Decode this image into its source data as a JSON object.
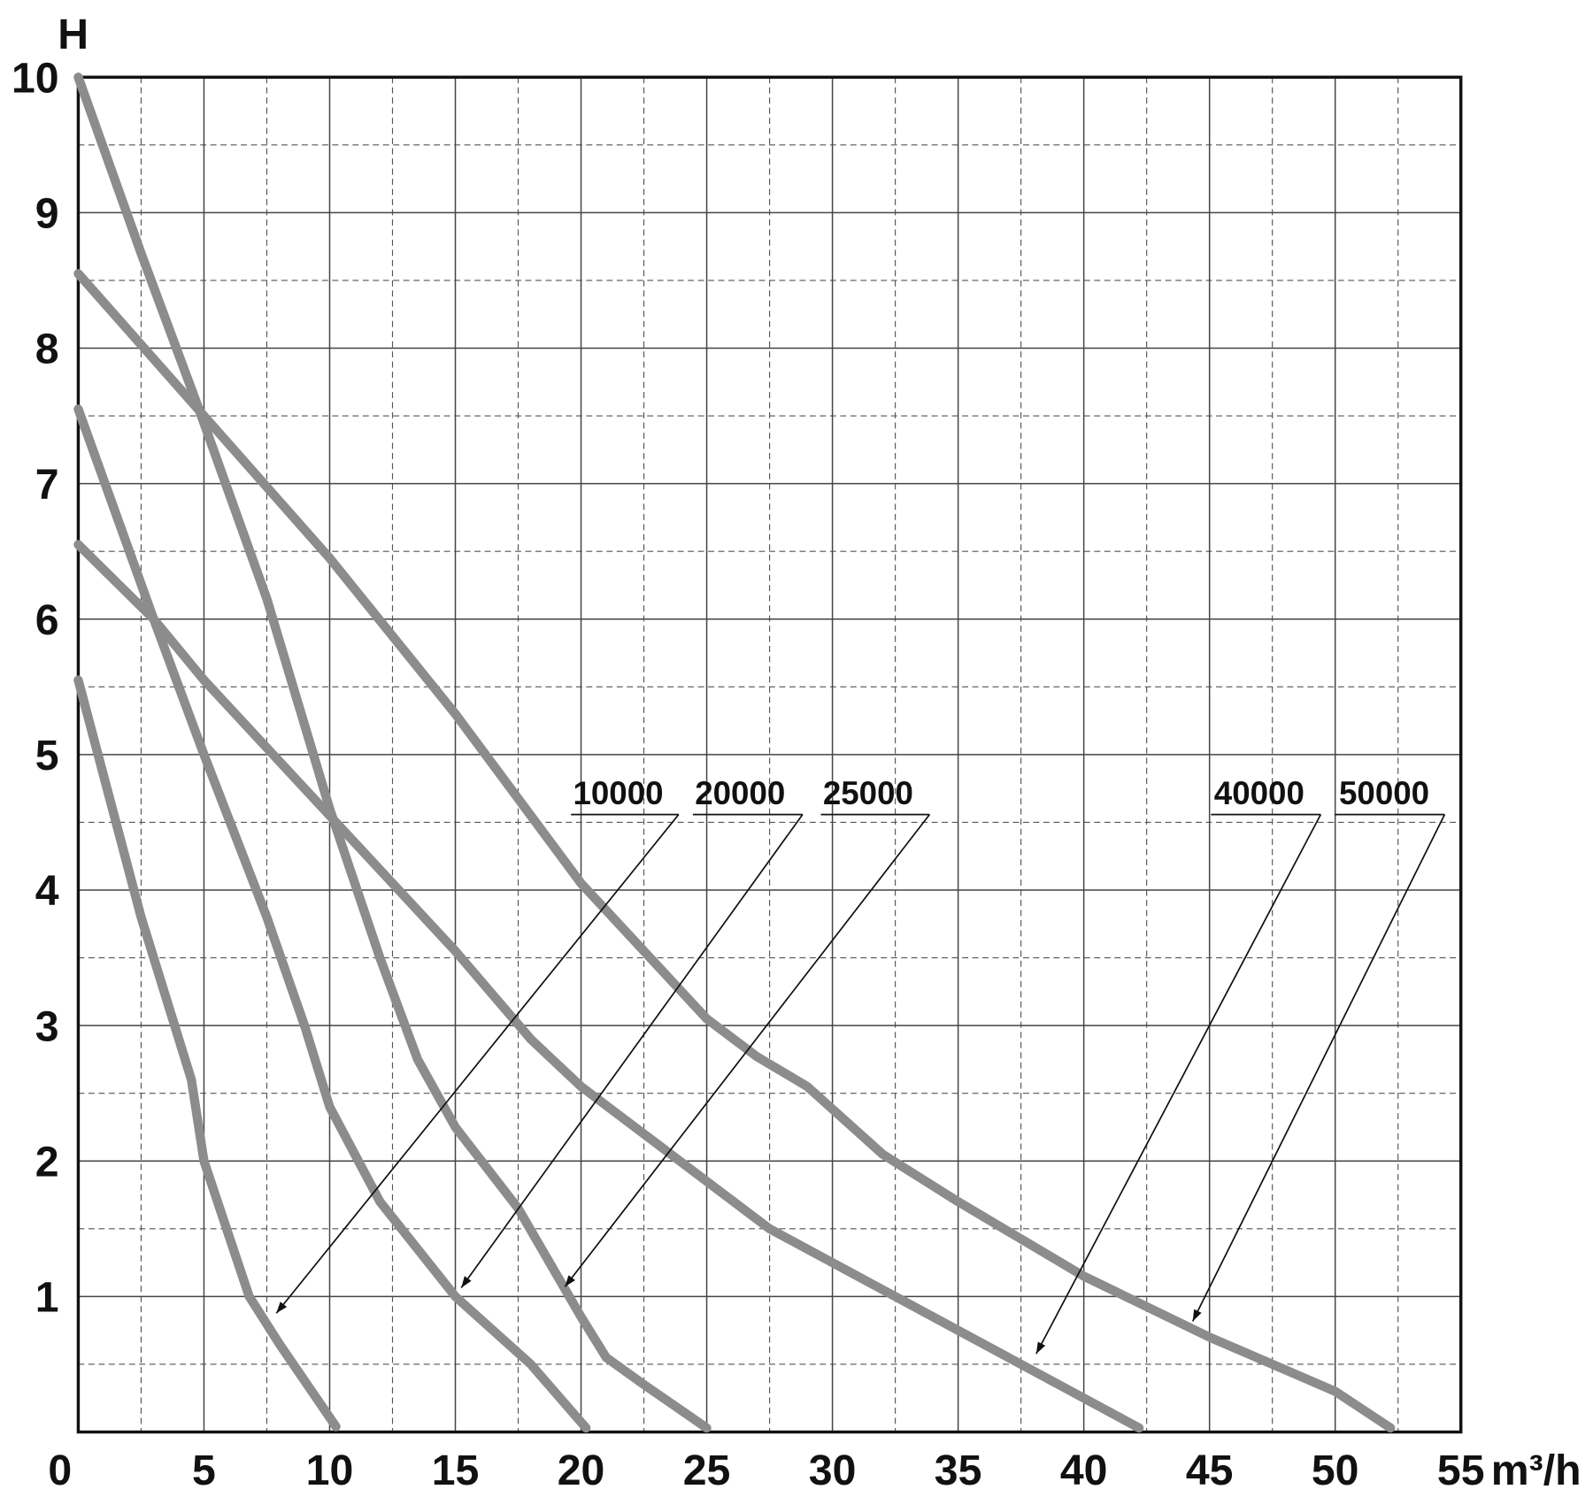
{
  "chart_data": {
    "type": "line",
    "y_label": "H",
    "x_label": "m³/h",
    "xlim": [
      0,
      55
    ],
    "xticks": [
      0,
      5,
      10,
      15,
      20,
      25,
      30,
      35,
      40,
      45,
      50,
      55
    ],
    "ylim": [
      0,
      10
    ],
    "yticks": [
      1,
      2,
      3,
      4,
      5,
      6,
      7,
      8,
      9,
      10
    ],
    "grid": true,
    "minor_grid": true,
    "series": [
      {
        "name": "10000",
        "color": "#8c8c8c",
        "x": [
          0,
          2.5,
          4.5,
          5,
          6.8,
          8,
          10.25
        ],
        "values": [
          5.55,
          3.8,
          2.6,
          2.0,
          1.0,
          0.65,
          0.04
        ]
      },
      {
        "name": "20000",
        "color": "#8c8c8c",
        "x": [
          0,
          3,
          5,
          7.5,
          9,
          10,
          12,
          15,
          18,
          20.2
        ],
        "values": [
          7.55,
          6.0,
          5.0,
          3.8,
          3.0,
          2.4,
          1.7,
          1.0,
          0.5,
          0.03
        ]
      },
      {
        "name": "25000",
        "color": "#8c8c8c",
        "x": [
          0,
          2.5,
          4.8,
          7.5,
          10,
          12,
          13.5,
          15,
          17.5,
          20,
          21,
          22.5,
          25
        ],
        "values": [
          10,
          8.7,
          7.55,
          6.15,
          4.6,
          3.5,
          2.75,
          2.25,
          1.65,
          0.85,
          0.55,
          0.35,
          0.03
        ]
      },
      {
        "name": "40000",
        "color": "#8c8c8c",
        "x": [
          0,
          3,
          5,
          10,
          15,
          18,
          20,
          25,
          27.5,
          30,
          35,
          38,
          42.2
        ],
        "values": [
          6.55,
          6.0,
          5.55,
          4.55,
          3.55,
          2.9,
          2.55,
          1.85,
          1.5,
          1.25,
          0.75,
          0.45,
          0.03
        ]
      },
      {
        "name": "50000",
        "color": "#8c8c8c",
        "x": [
          0,
          5,
          10,
          15,
          20,
          25,
          27,
          29,
          32,
          35,
          40,
          45,
          50,
          52.2
        ],
        "values": [
          8.55,
          7.5,
          6.45,
          5.3,
          4.05,
          3.05,
          2.77,
          2.55,
          2.05,
          1.7,
          1.15,
          0.7,
          0.3,
          0.03
        ]
      }
    ]
  }
}
